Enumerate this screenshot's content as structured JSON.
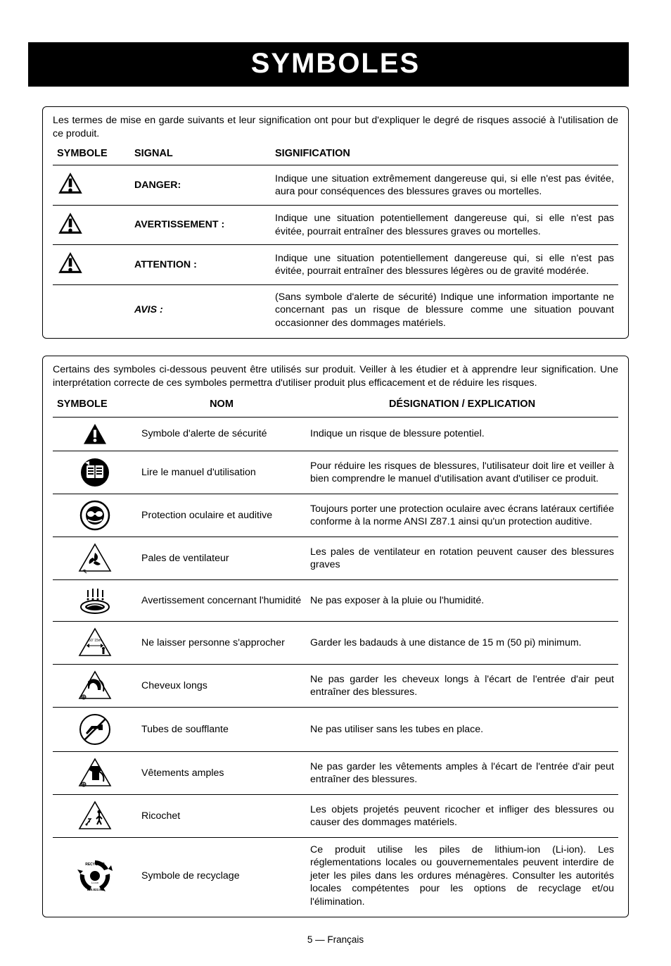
{
  "page": {
    "title": "SYMBOLES",
    "footer": "5 — Français"
  },
  "colors": {
    "black": "#000000",
    "white": "#ffffff"
  },
  "signal_box": {
    "intro": "Les termes de mise en garde suivants et leur signification ont pour but d'expliquer le degré de risques associé à l'utilisation de ce produit.",
    "headers": {
      "symbol": "SYMBOLE",
      "signal": "SIGNAL",
      "meaning": "SIGNIFICATION"
    },
    "rows": [
      {
        "has_icon": true,
        "signal": "DANGER:",
        "style": "bold",
        "meaning": "Indique une situation extrêmement dangereuse qui, si elle n'est pas évitée, aura pour conséquences des blessures graves ou mortelles."
      },
      {
        "has_icon": true,
        "signal": "AVERTISSEMENT :",
        "style": "bold",
        "meaning": "Indique une situation potentiellement dangereuse qui, si elle n'est pas évitée, pourrait entraîner des blessures graves ou mortelles."
      },
      {
        "has_icon": true,
        "signal": "ATTENTION :",
        "style": "bold",
        "meaning": "Indique une situation potentiellement dangereuse qui, si elle n'est pas évitée, pourrait entraîner des blessures légères ou de gravité modérée."
      },
      {
        "has_icon": false,
        "signal": "AVIS :",
        "style": "italic",
        "meaning": "(Sans symbole d'alerte de sécurité) Indique une information importante ne concernant pas un risque de blessure comme une situation pouvant occasionner des dommages matériels."
      }
    ]
  },
  "symbol_box": {
    "intro": "Certains des symboles ci-dessous peuvent être utilisés sur produit. Veiller à les étudier et à apprendre leur signification. Une interprétation correcte de ces symboles permettra d'utiliser produit plus efficacement et de réduire les risques.",
    "headers": {
      "symbol": "SYMBOLE",
      "name": "NOM",
      "desc": "DÉSIGNATION / EXPLICATION"
    },
    "rows": [
      {
        "icon": "alert",
        "name": "Symbole d'alerte de sécurité",
        "desc": "Indique un risque de blessure potentiel."
      },
      {
        "icon": "manual",
        "name": "Lire le manuel d'utilisation",
        "desc": "Pour réduire les risques de blessures, l'utilisateur doit lire et veiller à bien comprendre le manuel d'utilisation avant d'utiliser ce produit."
      },
      {
        "icon": "eye-ear",
        "name": "Protection oculaire et auditive",
        "desc": "Toujours porter une protection oculaire avec écrans latéraux certifiée conforme à la norme ANSI Z87.1 ainsi qu'un protection auditive."
      },
      {
        "icon": "fan",
        "name": "Pales de ventilateur",
        "desc": "Les pales de ventilateur en rotation peuvent causer des blessures graves"
      },
      {
        "icon": "wet",
        "name": "Avertissement concernant l'humidité",
        "desc": "Ne pas exposer à la pluie ou l'humidité."
      },
      {
        "icon": "bystander",
        "name": "Ne laisser personne s'approcher",
        "desc": "Garder les badauds à une distance de 15 m (50 pi) minimum."
      },
      {
        "icon": "hair",
        "name": "Cheveux longs",
        "desc": "Ne pas garder les cheveux longs à l'écart de l'entrée d'air peut entraîner des blessures."
      },
      {
        "icon": "tubes",
        "name": "Tubes de soufflante",
        "desc": "Ne pas utiliser sans les tubes en place."
      },
      {
        "icon": "clothing",
        "name": "Vêtements amples",
        "desc": "Ne pas garder les vêtements amples à l'écart de l'entrée d'air peut entraîner des blessures."
      },
      {
        "icon": "ricochet",
        "name": "Ricochet",
        "desc": "Les objets projetés peuvent ricocher et infliger des blessures ou causer des dommages matériels."
      },
      {
        "icon": "recycle",
        "name": "Symbole de recyclage",
        "desc": "Ce produit utilise les piles de lithium-ion (Li-ion). Les réglementations locales ou gouvernementales peuvent interdire de jeter les piles dans les ordures ménagères. Consulter les autorités locales compétentes pour les options de recyclage et/ou l'élimination."
      }
    ]
  }
}
